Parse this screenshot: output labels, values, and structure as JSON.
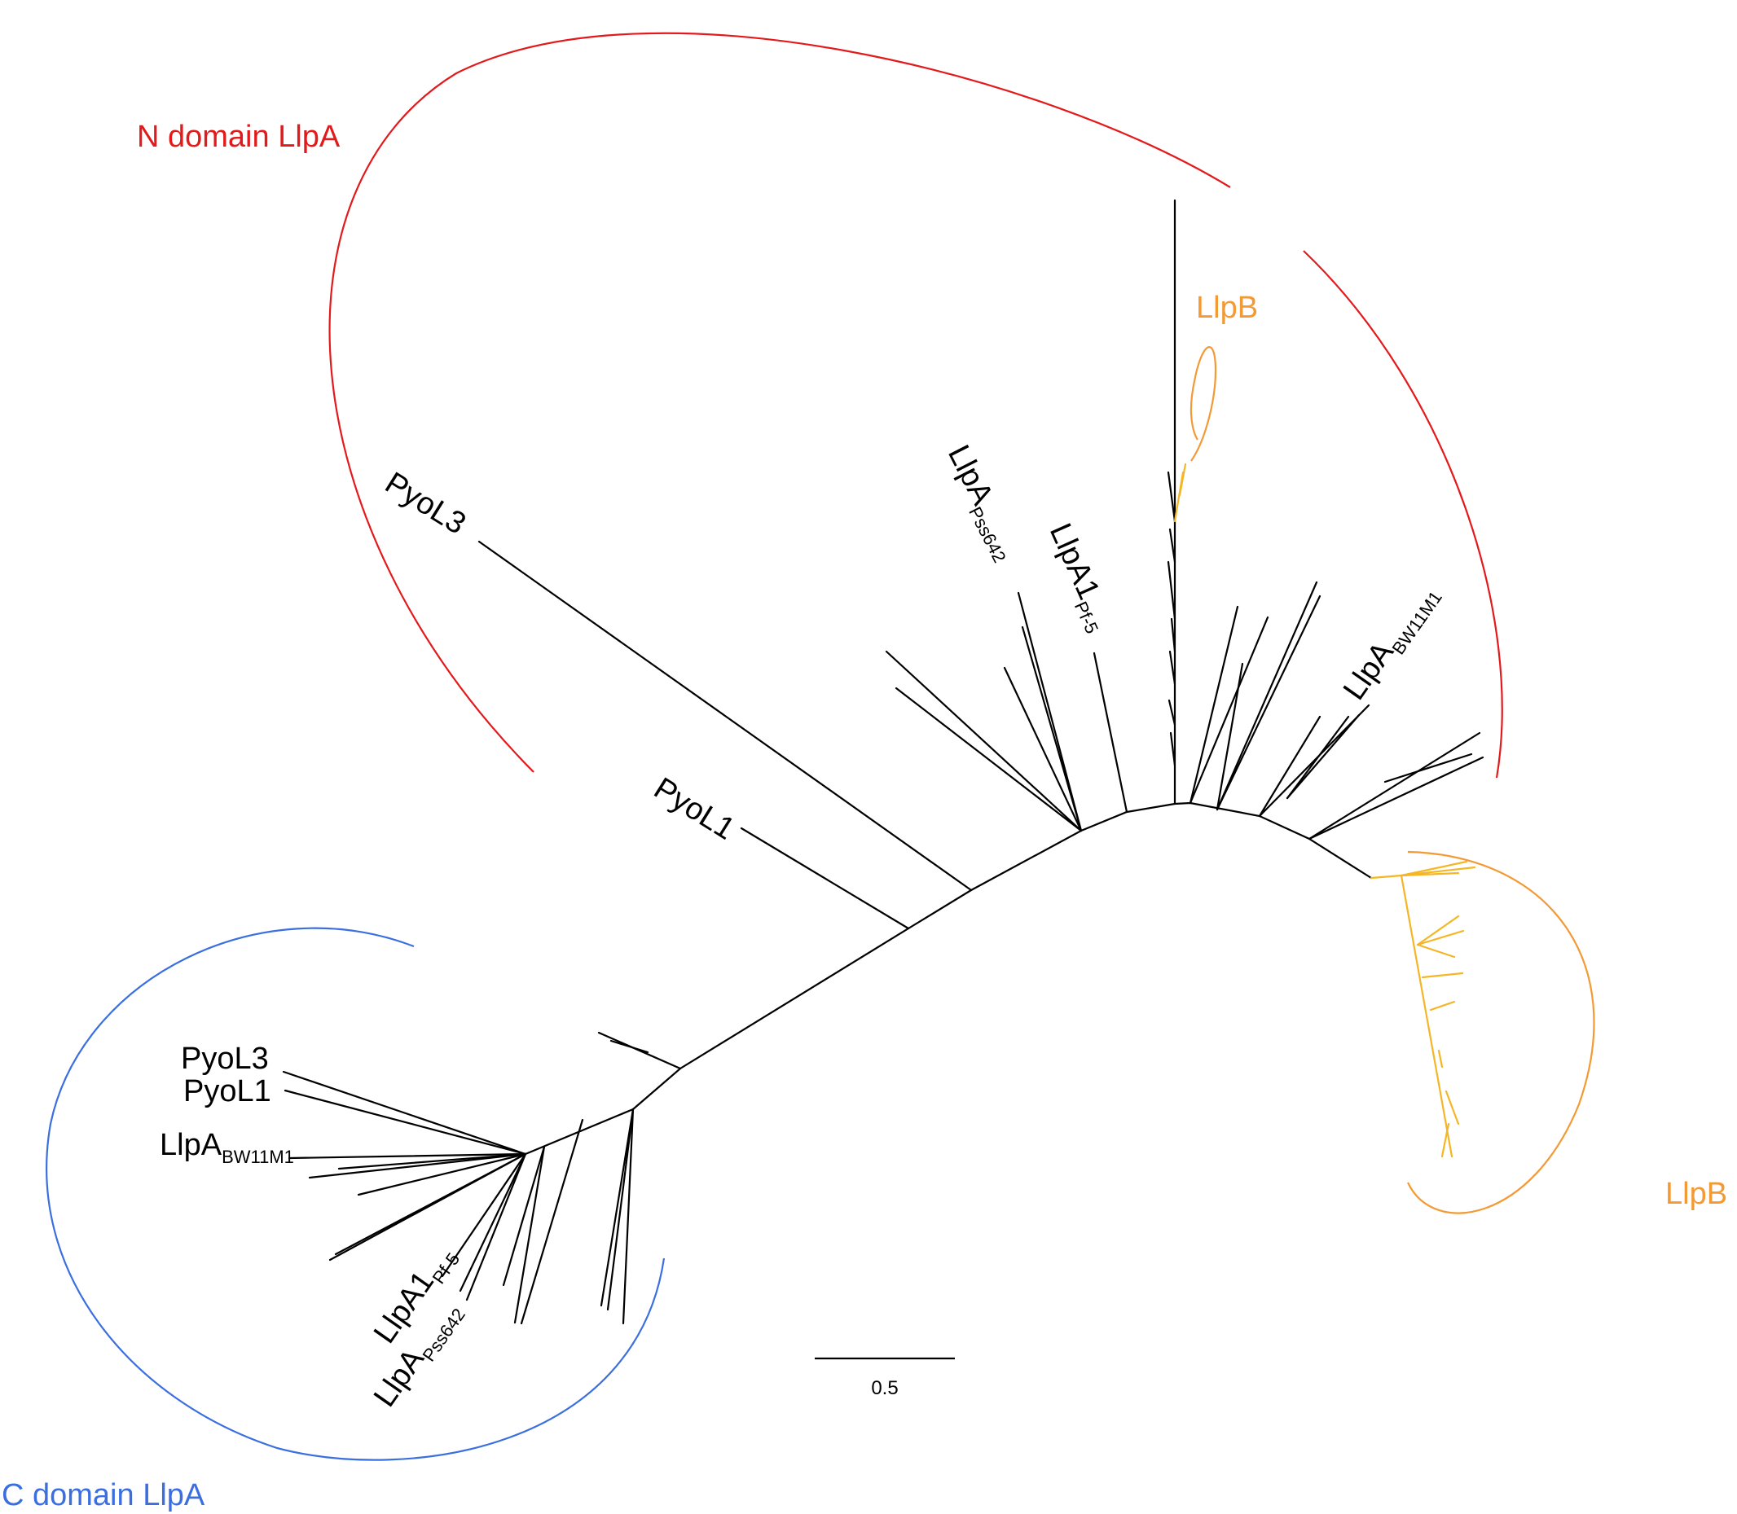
{
  "figure": {
    "groups": {
      "n_domain": {
        "label": "N domain LlpA",
        "color": "#e31a1c"
      },
      "c_domain": {
        "label": "C domain LlpA",
        "color": "#3b6fe0"
      },
      "llpb_top": {
        "label": "LlpB",
        "color": "#f39a34"
      },
      "llpb_right": {
        "label": "LlpB",
        "color": "#f39a34"
      }
    },
    "branch_colors": {
      "main": "#000000",
      "llpb": "#f5b625"
    },
    "taxa": {
      "n_pyol3": {
        "main": "PyoL3",
        "sub": ""
      },
      "n_pyol1": {
        "main": "PyoL1",
        "sub": ""
      },
      "n_llpa_pss642": {
        "main": "LlpA",
        "sub": "Pss642"
      },
      "n_llpa1_pf5": {
        "main": "LlpA1",
        "sub": "Pf-5"
      },
      "n_llpa_bw11m1": {
        "main": "LlpA",
        "sub": "BW11M1"
      },
      "c_pyol3": {
        "main": "PyoL3",
        "sub": ""
      },
      "c_pyol1": {
        "main": "PyoL1",
        "sub": ""
      },
      "c_llpa_bw11m1": {
        "main": "LlpA",
        "sub": "BW11M1"
      },
      "c_llpa1_pf5": {
        "main": "LlpA1",
        "sub": "Pf-5"
      },
      "c_llpa_pss642": {
        "main": "LlpA",
        "sub": "Pss642"
      }
    },
    "scale_bar": {
      "value": "0.5"
    }
  }
}
